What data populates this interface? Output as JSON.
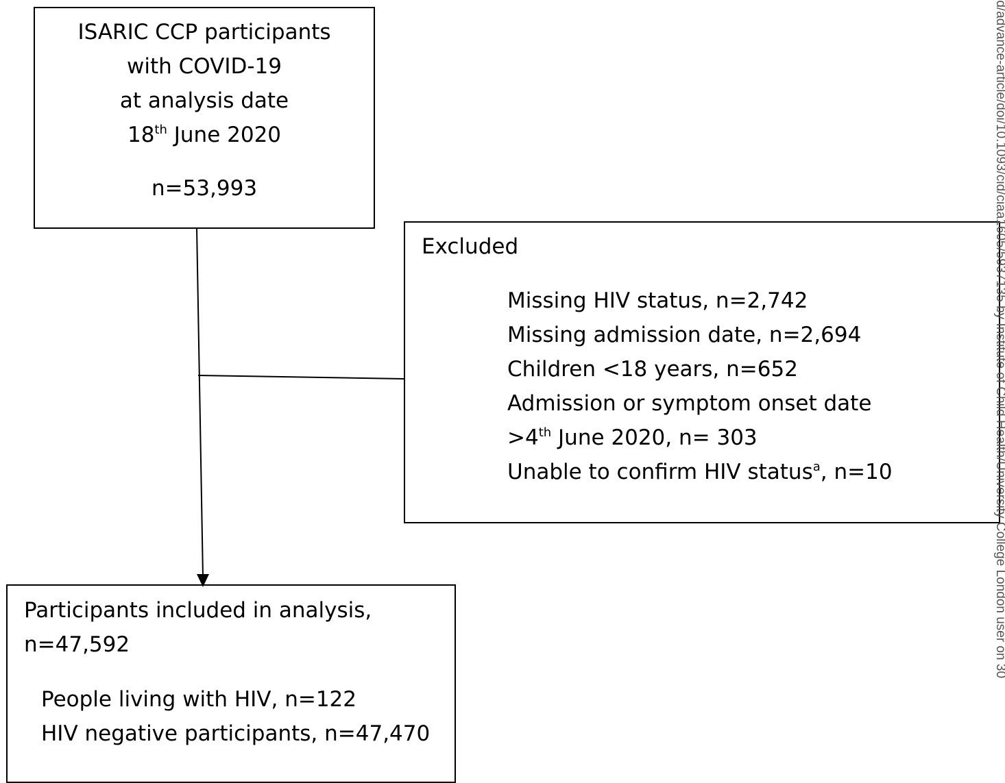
{
  "boxes": [
    {
      "lines": [
        [
          "ISARIC CCP participants"
        ],
        [
          "with COVID-19"
        ],
        [
          "at analysis date"
        ],
        [
          "18",
          {
            "sup": "th"
          },
          " June 2020"
        ],
        [
          "n=53,993"
        ]
      ]
    },
    {
      "lines": [
        [
          "Excluded"
        ],
        [
          "Missing HIV status, n=2,742"
        ],
        [
          "Missing admission date, n=2,694"
        ],
        [
          "Children <18 years, n=652"
        ],
        [
          "Admission or symptom onset date"
        ],
        [
          ">4",
          {
            "sup": "th"
          },
          " June 2020, n= 303"
        ],
        [
          "Unable to confirm HIV status",
          {
            "sup": "a"
          },
          ", n=10"
        ]
      ]
    },
    {
      "lines": [
        [
          "Participants included in analysis,"
        ],
        [
          "n=47,592"
        ],
        [
          "People living with HIV, n=122"
        ],
        [
          "HIV negative participants, n=47,470"
        ]
      ]
    }
  ],
  "watermark": "rd/advance-article/doi/10.1093/cid/ciaa1605/5937135 by Institute of Child Health/University College London user on 30"
}
